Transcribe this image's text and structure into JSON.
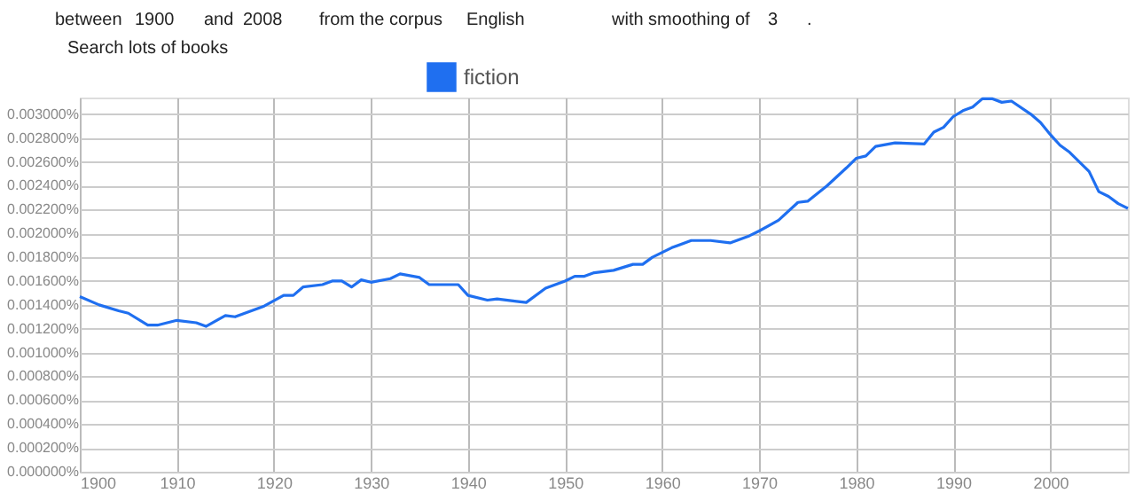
{
  "chart_data": {
    "type": "line",
    "annotations": [
      "between",
      "1900",
      "and",
      "2008",
      "from the corpus",
      "English",
      "with smoothing of",
      "3",
      ".",
      "Search lots of books"
    ],
    "x": [
      1900,
      1902,
      1904,
      1905,
      1907,
      1908,
      1910,
      1912,
      1913,
      1915,
      1916,
      1918,
      1919,
      1921,
      1922,
      1923,
      1925,
      1926,
      1927,
      1928,
      1929,
      1930,
      1932,
      1933,
      1935,
      1936,
      1939,
      1940,
      1942,
      1943,
      1945,
      1946,
      1948,
      1950,
      1951,
      1952,
      1953,
      1955,
      1957,
      1958,
      1959,
      1961,
      1963,
      1965,
      1967,
      1969,
      1970,
      1972,
      1974,
      1975,
      1977,
      1979,
      1980,
      1981,
      1982,
      1984,
      1987,
      1988,
      1989,
      1990,
      1991,
      1992,
      1993,
      1994,
      1995,
      1996,
      1998,
      1999,
      2000,
      2001,
      2002,
      2004,
      2005,
      2006,
      2007,
      2008
    ],
    "series": [
      {
        "name": "fiction",
        "color": "#1f6ff0",
        "values": [
          0.00147,
          0.0014,
          0.00135,
          0.00133,
          0.00123,
          0.00123,
          0.00127,
          0.00125,
          0.00122,
          0.00131,
          0.0013,
          0.00136,
          0.00139,
          0.00148,
          0.00148,
          0.00155,
          0.00157,
          0.0016,
          0.0016,
          0.00155,
          0.00161,
          0.00159,
          0.00162,
          0.00166,
          0.00163,
          0.00157,
          0.00157,
          0.00148,
          0.00144,
          0.00145,
          0.00143,
          0.00142,
          0.00154,
          0.0016,
          0.00164,
          0.00164,
          0.00167,
          0.00169,
          0.00174,
          0.00174,
          0.0018,
          0.00188,
          0.00194,
          0.00194,
          0.00192,
          0.00198,
          0.00202,
          0.00211,
          0.00226,
          0.00227,
          0.0024,
          0.00255,
          0.00263,
          0.00265,
          0.00273,
          0.00276,
          0.00275,
          0.00285,
          0.00289,
          0.00298,
          0.00303,
          0.00306,
          0.00313,
          0.00313,
          0.0031,
          0.00311,
          0.003,
          0.00293,
          0.00283,
          0.00274,
          0.00268,
          0.00252,
          0.00235,
          0.00231,
          0.00225,
          0.00221
        ]
      }
    ],
    "xlim": [
      1900,
      2008
    ],
    "xticks": [
      1900,
      1910,
      1920,
      1930,
      1940,
      1950,
      1960,
      1970,
      1980,
      1990,
      2000
    ],
    "ylim": [
      0,
      0.00314
    ],
    "yticks": [
      {
        "value": 0,
        "label": "0.000000%"
      },
      {
        "value": 0.0002,
        "label": "0.000200%"
      },
      {
        "value": 0.0004,
        "label": "0.000400%"
      },
      {
        "value": 0.0006,
        "label": "0.000600%"
      },
      {
        "value": 0.0008,
        "label": "0.000800%"
      },
      {
        "value": 0.001,
        "label": "0.001000%"
      },
      {
        "value": 0.0012,
        "label": "0.001200%"
      },
      {
        "value": 0.0014,
        "label": "0.001400%"
      },
      {
        "value": 0.0016,
        "label": "0.001600%"
      },
      {
        "value": 0.0018,
        "label": "0.001800%"
      },
      {
        "value": 0.002,
        "label": "0.002000%"
      },
      {
        "value": 0.0022,
        "label": "0.002200%"
      },
      {
        "value": 0.0024,
        "label": "0.002400%"
      },
      {
        "value": 0.0026,
        "label": "0.002600%"
      },
      {
        "value": 0.0028,
        "label": "0.002800%"
      },
      {
        "value": 0.003,
        "label": "0.003000%"
      }
    ],
    "grid": true,
    "legend": "top",
    "line_style": "solid"
  }
}
